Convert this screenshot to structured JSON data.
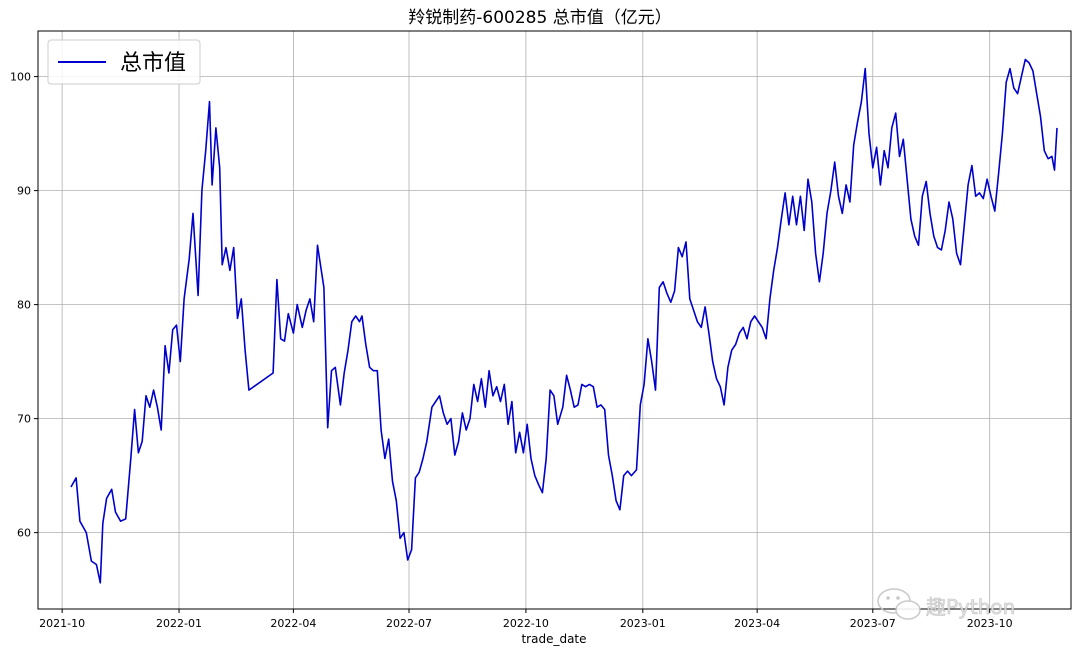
{
  "chart_data": {
    "type": "line",
    "title": "羚锐制药-600285 总市值（亿元）",
    "xlabel": "trade_date",
    "ylabel": "",
    "x_ticks": [
      "2021-10",
      "2022-01",
      "2022-04",
      "2022-07",
      "2022-10",
      "2023-01",
      "2023-04",
      "2023-07",
      "2023-10"
    ],
    "y_ticks": [
      60,
      70,
      80,
      90,
      100
    ],
    "xlim": [
      "2021-09-12",
      "2023-12-04"
    ],
    "ylim": [
      53.3,
      104.0
    ],
    "grid": true,
    "legend_position": "top-left",
    "series": [
      {
        "name": "总市值",
        "color": "#0000cd",
        "points": [
          [
            "2021-10-08",
            64.0
          ],
          [
            "2021-10-12",
            64.8
          ],
          [
            "2021-10-15",
            61.0
          ],
          [
            "2021-10-20",
            60.0
          ],
          [
            "2021-10-24",
            57.5
          ],
          [
            "2021-10-28",
            57.2
          ],
          [
            "2021-10-31",
            55.6
          ],
          [
            "2021-11-02",
            60.8
          ],
          [
            "2021-11-05",
            63.0
          ],
          [
            "2021-11-09",
            63.8
          ],
          [
            "2021-11-12",
            61.8
          ],
          [
            "2021-11-16",
            61.0
          ],
          [
            "2021-11-20",
            61.2
          ],
          [
            "2021-11-24",
            66.5
          ],
          [
            "2021-11-27",
            70.8
          ],
          [
            "2021-11-30",
            67.0
          ],
          [
            "2021-12-03",
            68.0
          ],
          [
            "2021-12-06",
            72.0
          ],
          [
            "2021-12-09",
            71.0
          ],
          [
            "2021-12-12",
            72.5
          ],
          [
            "2021-12-15",
            71.0
          ],
          [
            "2021-12-18",
            69.0
          ],
          [
            "2021-12-21",
            76.4
          ],
          [
            "2021-12-24",
            74.0
          ],
          [
            "2021-12-27",
            77.8
          ],
          [
            "2021-12-30",
            78.2
          ],
          [
            "2022-01-02",
            75.0
          ],
          [
            "2022-01-05",
            80.5
          ],
          [
            "2022-01-09",
            84.0
          ],
          [
            "2022-01-12",
            88.0
          ],
          [
            "2022-01-16",
            80.8
          ],
          [
            "2022-01-19",
            90.0
          ],
          [
            "2022-01-22",
            93.5
          ],
          [
            "2022-01-25",
            97.8
          ],
          [
            "2022-01-27",
            90.5
          ],
          [
            "2022-01-30",
            95.5
          ],
          [
            "2022-02-02",
            92.0
          ],
          [
            "2022-02-04",
            83.5
          ],
          [
            "2022-02-07",
            85.0
          ],
          [
            "2022-02-10",
            83.0
          ],
          [
            "2022-02-13",
            85.0
          ],
          [
            "2022-02-16",
            78.8
          ],
          [
            "2022-02-19",
            80.5
          ],
          [
            "2022-02-22",
            76.0
          ],
          [
            "2022-02-25",
            72.5
          ],
          [
            "2022-03-16",
            74.0
          ],
          [
            "2022-03-19",
            82.2
          ],
          [
            "2022-03-22",
            77.0
          ],
          [
            "2022-03-25",
            76.8
          ],
          [
            "2022-03-28",
            79.2
          ],
          [
            "2022-04-01",
            77.5
          ],
          [
            "2022-04-04",
            80.0
          ],
          [
            "2022-04-08",
            78.0
          ],
          [
            "2022-04-11",
            79.5
          ],
          [
            "2022-04-14",
            80.5
          ],
          [
            "2022-04-17",
            78.5
          ],
          [
            "2022-04-20",
            85.2
          ],
          [
            "2022-04-23",
            83.0
          ],
          [
            "2022-04-25",
            81.5
          ],
          [
            "2022-04-28",
            69.2
          ],
          [
            "2022-05-01",
            74.2
          ],
          [
            "2022-05-04",
            74.5
          ],
          [
            "2022-05-08",
            71.2
          ],
          [
            "2022-05-11",
            74.0
          ],
          [
            "2022-05-14",
            76.0
          ],
          [
            "2022-05-17",
            78.5
          ],
          [
            "2022-05-20",
            79.0
          ],
          [
            "2022-05-23",
            78.5
          ],
          [
            "2022-05-25",
            79.0
          ],
          [
            "2022-05-28",
            76.5
          ],
          [
            "2022-05-31",
            74.5
          ],
          [
            "2022-06-03",
            74.2
          ],
          [
            "2022-06-06",
            74.2
          ],
          [
            "2022-06-09",
            69.0
          ],
          [
            "2022-06-12",
            66.5
          ],
          [
            "2022-06-15",
            68.2
          ],
          [
            "2022-06-18",
            64.5
          ],
          [
            "2022-06-21",
            62.8
          ],
          [
            "2022-06-24",
            59.5
          ],
          [
            "2022-06-27",
            60.0
          ],
          [
            "2022-06-30",
            57.6
          ],
          [
            "2022-07-03",
            58.5
          ],
          [
            "2022-07-06",
            64.8
          ],
          [
            "2022-07-09",
            65.3
          ],
          [
            "2022-07-12",
            66.5
          ],
          [
            "2022-07-15",
            68.0
          ],
          [
            "2022-07-19",
            71.0
          ],
          [
            "2022-07-22",
            71.5
          ],
          [
            "2022-07-25",
            72.0
          ],
          [
            "2022-07-28",
            70.5
          ],
          [
            "2022-07-31",
            69.5
          ],
          [
            "2022-08-03",
            70.0
          ],
          [
            "2022-08-06",
            66.8
          ],
          [
            "2022-08-09",
            68.0
          ],
          [
            "2022-08-12",
            70.5
          ],
          [
            "2022-08-15",
            69.0
          ],
          [
            "2022-08-18",
            70.0
          ],
          [
            "2022-08-21",
            73.0
          ],
          [
            "2022-08-24",
            71.5
          ],
          [
            "2022-08-27",
            73.5
          ],
          [
            "2022-08-30",
            71.0
          ],
          [
            "2022-09-02",
            74.2
          ],
          [
            "2022-09-05",
            72.0
          ],
          [
            "2022-09-08",
            72.8
          ],
          [
            "2022-09-11",
            71.5
          ],
          [
            "2022-09-14",
            73.0
          ],
          [
            "2022-09-17",
            69.5
          ],
          [
            "2022-09-20",
            71.5
          ],
          [
            "2022-09-23",
            67.0
          ],
          [
            "2022-09-26",
            68.8
          ],
          [
            "2022-09-29",
            67.0
          ],
          [
            "2022-10-02",
            69.5
          ],
          [
            "2022-10-05",
            66.5
          ],
          [
            "2022-10-08",
            65.0
          ],
          [
            "2022-10-11",
            64.2
          ],
          [
            "2022-10-14",
            63.5
          ],
          [
            "2022-10-17",
            66.5
          ],
          [
            "2022-10-20",
            72.5
          ],
          [
            "2022-10-23",
            72.0
          ],
          [
            "2022-10-26",
            69.5
          ],
          [
            "2022-10-30",
            71.0
          ],
          [
            "2022-11-02",
            73.8
          ],
          [
            "2022-11-05",
            72.5
          ],
          [
            "2022-11-08",
            71.0
          ],
          [
            "2022-11-11",
            71.2
          ],
          [
            "2022-11-14",
            73.0
          ],
          [
            "2022-11-17",
            72.8
          ],
          [
            "2022-11-20",
            73.0
          ],
          [
            "2022-11-23",
            72.8
          ],
          [
            "2022-11-26",
            71.0
          ],
          [
            "2022-11-29",
            71.2
          ],
          [
            "2022-12-02",
            70.8
          ],
          [
            "2022-12-05",
            66.8
          ],
          [
            "2022-12-08",
            65.0
          ],
          [
            "2022-12-11",
            62.8
          ],
          [
            "2022-12-14",
            62.0
          ],
          [
            "2022-12-17",
            65.0
          ],
          [
            "2022-12-20",
            65.4
          ],
          [
            "2022-12-23",
            65.0
          ],
          [
            "2022-12-27",
            65.5
          ],
          [
            "2022-12-30",
            71.2
          ],
          [
            "2023-01-02",
            73.0
          ],
          [
            "2023-01-05",
            77.0
          ],
          [
            "2023-01-08",
            75.0
          ],
          [
            "2023-01-11",
            72.5
          ],
          [
            "2023-01-14",
            81.5
          ],
          [
            "2023-01-17",
            82.0
          ],
          [
            "2023-01-20",
            81.0
          ],
          [
            "2023-01-23",
            80.2
          ],
          [
            "2023-01-26",
            81.2
          ],
          [
            "2023-01-29",
            85.0
          ],
          [
            "2023-02-01",
            84.2
          ],
          [
            "2023-02-04",
            85.5
          ],
          [
            "2023-02-07",
            80.5
          ],
          [
            "2023-02-10",
            79.5
          ],
          [
            "2023-02-13",
            78.5
          ],
          [
            "2023-02-16",
            78.0
          ],
          [
            "2023-02-19",
            79.8
          ],
          [
            "2023-02-22",
            77.5
          ],
          [
            "2023-02-25",
            75.0
          ],
          [
            "2023-02-28",
            73.5
          ],
          [
            "2023-03-03",
            72.8
          ],
          [
            "2023-03-06",
            71.2
          ],
          [
            "2023-03-09",
            74.5
          ],
          [
            "2023-03-12",
            76.0
          ],
          [
            "2023-03-15",
            76.5
          ],
          [
            "2023-03-18",
            77.5
          ],
          [
            "2023-03-21",
            78.0
          ],
          [
            "2023-03-24",
            77.0
          ],
          [
            "2023-03-27",
            78.5
          ],
          [
            "2023-03-30",
            79.0
          ],
          [
            "2023-04-02",
            78.5
          ],
          [
            "2023-04-05",
            78.0
          ],
          [
            "2023-04-08",
            77.0
          ],
          [
            "2023-04-11",
            80.5
          ],
          [
            "2023-04-14",
            83.0
          ],
          [
            "2023-04-17",
            85.0
          ],
          [
            "2023-04-20",
            87.5
          ],
          [
            "2023-04-23",
            89.8
          ],
          [
            "2023-04-26",
            87.0
          ],
          [
            "2023-04-29",
            89.5
          ],
          [
            "2023-05-02",
            87.0
          ],
          [
            "2023-05-05",
            89.5
          ],
          [
            "2023-05-08",
            86.5
          ],
          [
            "2023-05-11",
            91.0
          ],
          [
            "2023-05-14",
            89.0
          ],
          [
            "2023-05-17",
            84.5
          ],
          [
            "2023-05-20",
            82.0
          ],
          [
            "2023-05-23",
            84.5
          ],
          [
            "2023-05-26",
            88.0
          ],
          [
            "2023-05-29",
            90.0
          ],
          [
            "2023-06-01",
            92.5
          ],
          [
            "2023-06-04",
            89.5
          ],
          [
            "2023-06-07",
            88.0
          ],
          [
            "2023-06-10",
            90.5
          ],
          [
            "2023-06-13",
            89.0
          ],
          [
            "2023-06-16",
            94.0
          ],
          [
            "2023-06-19",
            96.0
          ],
          [
            "2023-06-22",
            97.8
          ],
          [
            "2023-06-25",
            100.7
          ],
          [
            "2023-06-28",
            95.0
          ],
          [
            "2023-07-01",
            92.0
          ],
          [
            "2023-07-04",
            93.8
          ],
          [
            "2023-07-07",
            90.5
          ],
          [
            "2023-07-10",
            93.5
          ],
          [
            "2023-07-13",
            92.0
          ],
          [
            "2023-07-16",
            95.5
          ],
          [
            "2023-07-19",
            96.8
          ],
          [
            "2023-07-22",
            93.0
          ],
          [
            "2023-07-25",
            94.5
          ],
          [
            "2023-07-28",
            91.0
          ],
          [
            "2023-07-31",
            87.5
          ],
          [
            "2023-08-03",
            86.0
          ],
          [
            "2023-08-06",
            85.2
          ],
          [
            "2023-08-09",
            89.5
          ],
          [
            "2023-08-12",
            90.8
          ],
          [
            "2023-08-15",
            88.0
          ],
          [
            "2023-08-18",
            86.0
          ],
          [
            "2023-08-21",
            85.0
          ],
          [
            "2023-08-24",
            84.8
          ],
          [
            "2023-08-27",
            86.5
          ],
          [
            "2023-08-30",
            89.0
          ],
          [
            "2023-09-02",
            87.5
          ],
          [
            "2023-09-05",
            84.5
          ],
          [
            "2023-09-08",
            83.5
          ],
          [
            "2023-09-11",
            87.0
          ],
          [
            "2023-09-14",
            90.5
          ],
          [
            "2023-09-17",
            92.2
          ],
          [
            "2023-09-20",
            89.5
          ],
          [
            "2023-09-23",
            89.8
          ],
          [
            "2023-09-26",
            89.3
          ],
          [
            "2023-09-29",
            91.0
          ],
          [
            "2023-10-02",
            89.5
          ],
          [
            "2023-10-05",
            88.2
          ],
          [
            "2023-10-08",
            91.5
          ],
          [
            "2023-10-11",
            95.0
          ],
          [
            "2023-10-14",
            99.5
          ],
          [
            "2023-10-17",
            100.7
          ],
          [
            "2023-10-20",
            99.0
          ],
          [
            "2023-10-23",
            98.5
          ],
          [
            "2023-10-26",
            100.0
          ],
          [
            "2023-10-29",
            101.5
          ],
          [
            "2023-11-01",
            101.2
          ],
          [
            "2023-11-04",
            100.5
          ],
          [
            "2023-11-07",
            98.5
          ],
          [
            "2023-11-10",
            96.5
          ],
          [
            "2023-11-13",
            93.5
          ],
          [
            "2023-11-16",
            92.8
          ],
          [
            "2023-11-19",
            93.0
          ],
          [
            "2023-11-21",
            91.8
          ],
          [
            "2023-11-23",
            95.5
          ]
        ]
      }
    ],
    "watermark": "趣Python"
  }
}
